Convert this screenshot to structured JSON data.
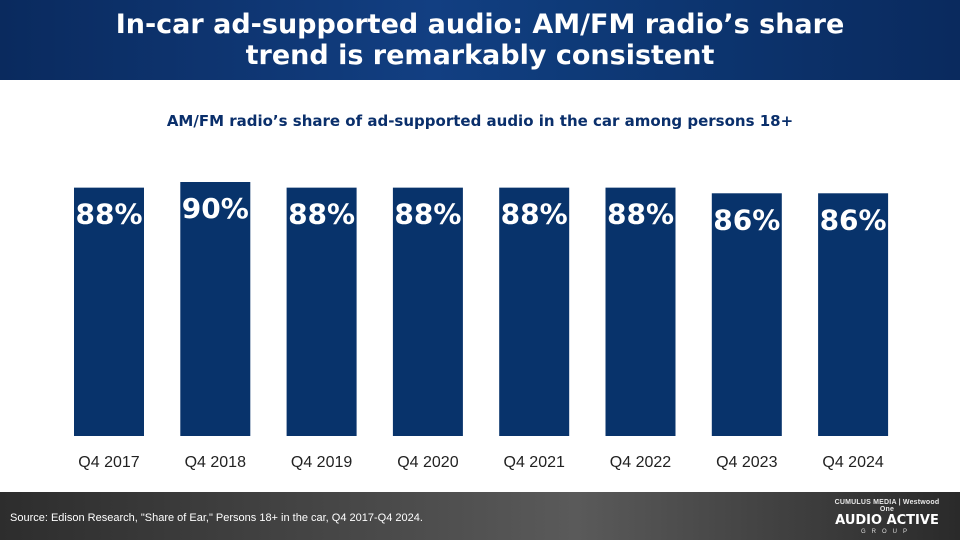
{
  "slide": {
    "title": "In-car ad-supported audio: AM/FM radio’s share trend is remarkably consistent",
    "source": "Source: Edison Research, \"Share of Ear,\" Persons 18+ in the car, Q4 2017-Q4 2024.",
    "logo": {
      "top": "CUMULUS MEDIA | Westwood One",
      "main": "AUDIO ACTIVE",
      "sub": "GROUP"
    }
  },
  "colors": {
    "bar": "#08336b",
    "header": "#0a2a5e",
    "label": "#ffffff",
    "tick": "#222222"
  },
  "chart_data": {
    "type": "bar",
    "title": "AM/FM radio’s share of ad-supported audio in the car among persons 18+",
    "xlabel": "",
    "ylabel": "",
    "categories": [
      "Q4 2017",
      "Q4 2018",
      "Q4 2019",
      "Q4 2020",
      "Q4 2021",
      "Q4 2022",
      "Q4 2023",
      "Q4 2024"
    ],
    "values": [
      88,
      90,
      88,
      88,
      88,
      88,
      86,
      86
    ],
    "value_labels": [
      "88%",
      "90%",
      "88%",
      "88%",
      "88%",
      "88%",
      "86%",
      "86%"
    ],
    "unit": "%",
    "ylim": [
      0,
      90
    ],
    "grid": false,
    "legend": "none"
  }
}
